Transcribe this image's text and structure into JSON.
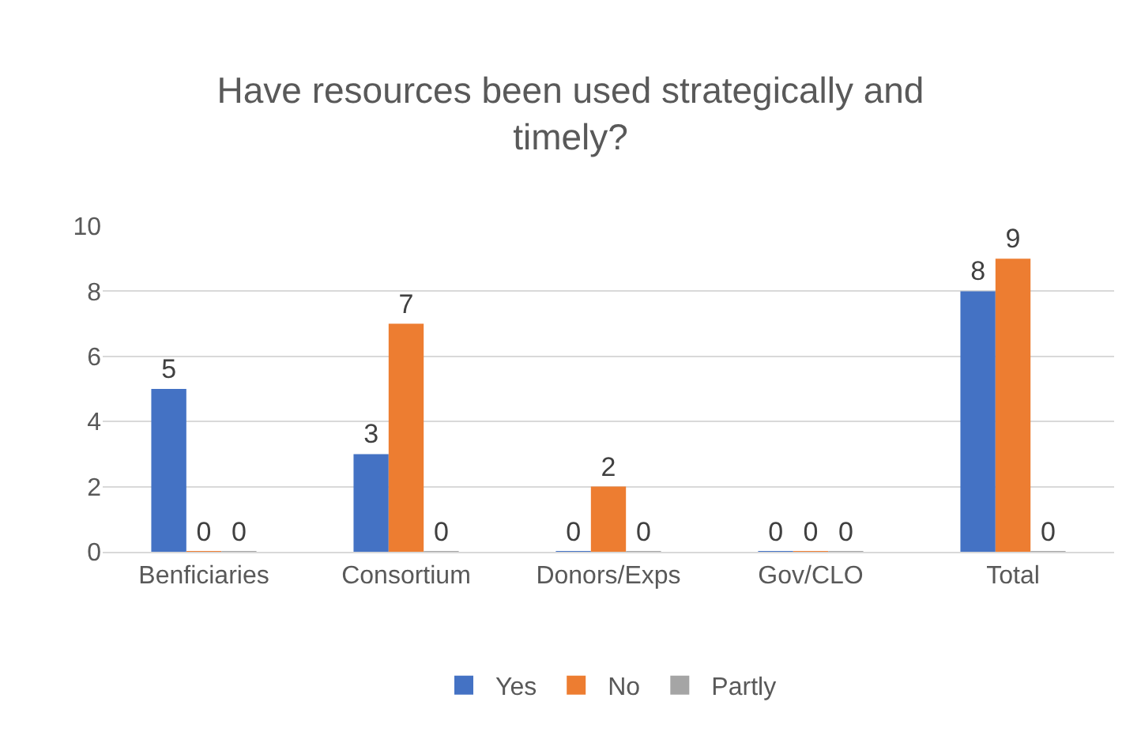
{
  "chart_data": {
    "type": "bar",
    "title": "Have resources been used strategically and timely?",
    "categories": [
      "Benficiaries",
      "Consortium",
      "Donors/Exps",
      "Gov/CLO",
      "Total"
    ],
    "series": [
      {
        "name": "Yes",
        "color": "#4472c4",
        "values": [
          5,
          3,
          0,
          0,
          8
        ]
      },
      {
        "name": "No",
        "color": "#ed7d31",
        "values": [
          0,
          7,
          2,
          0,
          9
        ]
      },
      {
        "name": "Partly",
        "color": "#a5a5a5",
        "values": [
          0,
          0,
          0,
          0,
          0
        ]
      }
    ],
    "ylim": [
      0,
      10
    ],
    "yticks": [
      0,
      2,
      4,
      6,
      8,
      10
    ],
    "grid": "y",
    "legend": "bottom",
    "data_labels": true
  }
}
